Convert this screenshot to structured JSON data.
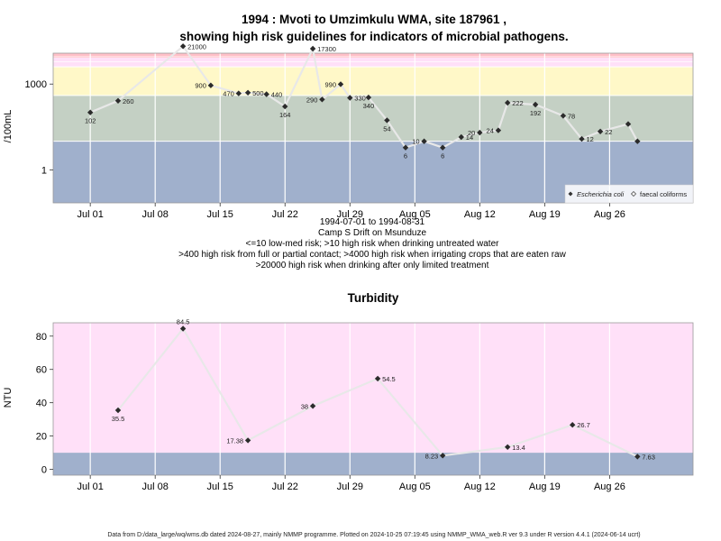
{
  "chart_data": [
    {
      "type": "scatter",
      "title": "1994 : Mvoti to Umzimkulu WMA, site 187961 ,",
      "title2": "showing high risk guidelines for indicators of microbial pathogens.",
      "ylabel": "/100mL",
      "y_scale": "log10",
      "ylim": [
        0.07,
        12000
      ],
      "x_start": "1994-07-01",
      "xlim_days": [
        -4,
        65
      ],
      "x_ticks": [
        "Jul 01",
        "Jul 08",
        "Jul 15",
        "Jul 22",
        "Jul 29",
        "Aug 05",
        "Aug 12",
        "Aug 19",
        "Aug 26"
      ],
      "x_tick_days": [
        0,
        7,
        14,
        21,
        28,
        35,
        42,
        49,
        56
      ],
      "y_ticks": [
        "1",
        "1000"
      ],
      "y_tick_values": [
        1,
        1000
      ],
      "bands": [
        {
          "from": 0.07,
          "to": 10,
          "color": "#a0b0cc"
        },
        {
          "from": 10,
          "to": 400,
          "color": "#c4d0c4"
        },
        {
          "from": 400,
          "to": 4000,
          "color": "#fff8c8"
        },
        {
          "from": 4000,
          "to": 20000,
          "color": "#ffe0f8"
        }
      ],
      "band_lines": [
        10,
        400,
        4000,
        20000
      ],
      "top_strip_color": "#ffc0c8",
      "series": [
        {
          "name": "Escherichia coli",
          "x_days": [
            0,
            3,
            10,
            13,
            16,
            17,
            19,
            21,
            24,
            25,
            27,
            28,
            30,
            32,
            34,
            36,
            38,
            40,
            42,
            44,
            45,
            48,
            51,
            53,
            55,
            58,
            59
          ],
          "values": [
            102,
            260,
            21000,
            900,
            470,
            500,
            440,
            164,
            17300,
            290,
            990,
            330,
            340,
            54,
            6,
            10,
            6,
            14,
            20,
            24,
            222,
            192,
            78,
            12,
            22,
            40,
            10
          ],
          "labels": [
            "102",
            "260",
            "21000",
            "900",
            "470",
            "500",
            "440",
            "164",
            "17300",
            "290",
            "990",
            "330",
            "340",
            "54",
            "6",
            "10",
            "6",
            "14",
            "20",
            "24",
            "222",
            "192",
            "78",
            "12",
            "22",
            "",
            ""
          ]
        }
      ],
      "legend": [
        "Escherichia coli",
        "faecal coliforms"
      ],
      "legend_position": "bottom-right",
      "caption_lines": [
        "1994-07-01 to 1994-08-31",
        "Camp S Drift on Msunduze",
        "<=10 low-med risk; >10 high risk when drinking untreated water",
        ">400 high risk from full or partial contact; >4000 high risk when irrigating crops that are eaten raw",
        ">20000 high risk when drinking after only limited treatment"
      ]
    },
    {
      "type": "scatter",
      "title": "Turbidity",
      "ylabel": "NTU",
      "ylim": [
        -3.5,
        88
      ],
      "x_start": "1994-07-01",
      "xlim_days": [
        -4,
        65
      ],
      "x_ticks": [
        "Jul 01",
        "Jul 08",
        "Jul 15",
        "Jul 22",
        "Jul 29",
        "Aug 05",
        "Aug 12",
        "Aug 19",
        "Aug 26"
      ],
      "x_tick_days": [
        0,
        7,
        14,
        21,
        28,
        35,
        42,
        49,
        56
      ],
      "y_ticks": [
        "0",
        "20",
        "40",
        "60",
        "80"
      ],
      "y_tick_values": [
        0,
        20,
        40,
        60,
        80
      ],
      "bands": [
        {
          "from": -3.5,
          "to": 10,
          "color": "#a0b0cc"
        },
        {
          "from": 10,
          "to": 88,
          "color": "#ffe0f8"
        }
      ],
      "series": [
        {
          "name": "Turbidity",
          "x_days": [
            3,
            10,
            17,
            24,
            31,
            38,
            45,
            52,
            59
          ],
          "values": [
            35.5,
            84.5,
            17.38,
            38,
            54.5,
            8.23,
            13.4,
            26.7,
            7.63
          ],
          "labels": [
            "35.5",
            "84.5",
            "17.38",
            "38",
            "54.5",
            "8.23",
            "13.4",
            "26.7",
            "7.63"
          ]
        }
      ]
    }
  ],
  "footer": "Data from D:/data_large/wq/wms.db dated 2024-08-27, mainly NMMP programme. Plotted on 2024-10-25 07:19:45 using NMMP_WMA_web.R ver 9.3 under R version 4.4.1 (2024-06-14 ucrt)"
}
